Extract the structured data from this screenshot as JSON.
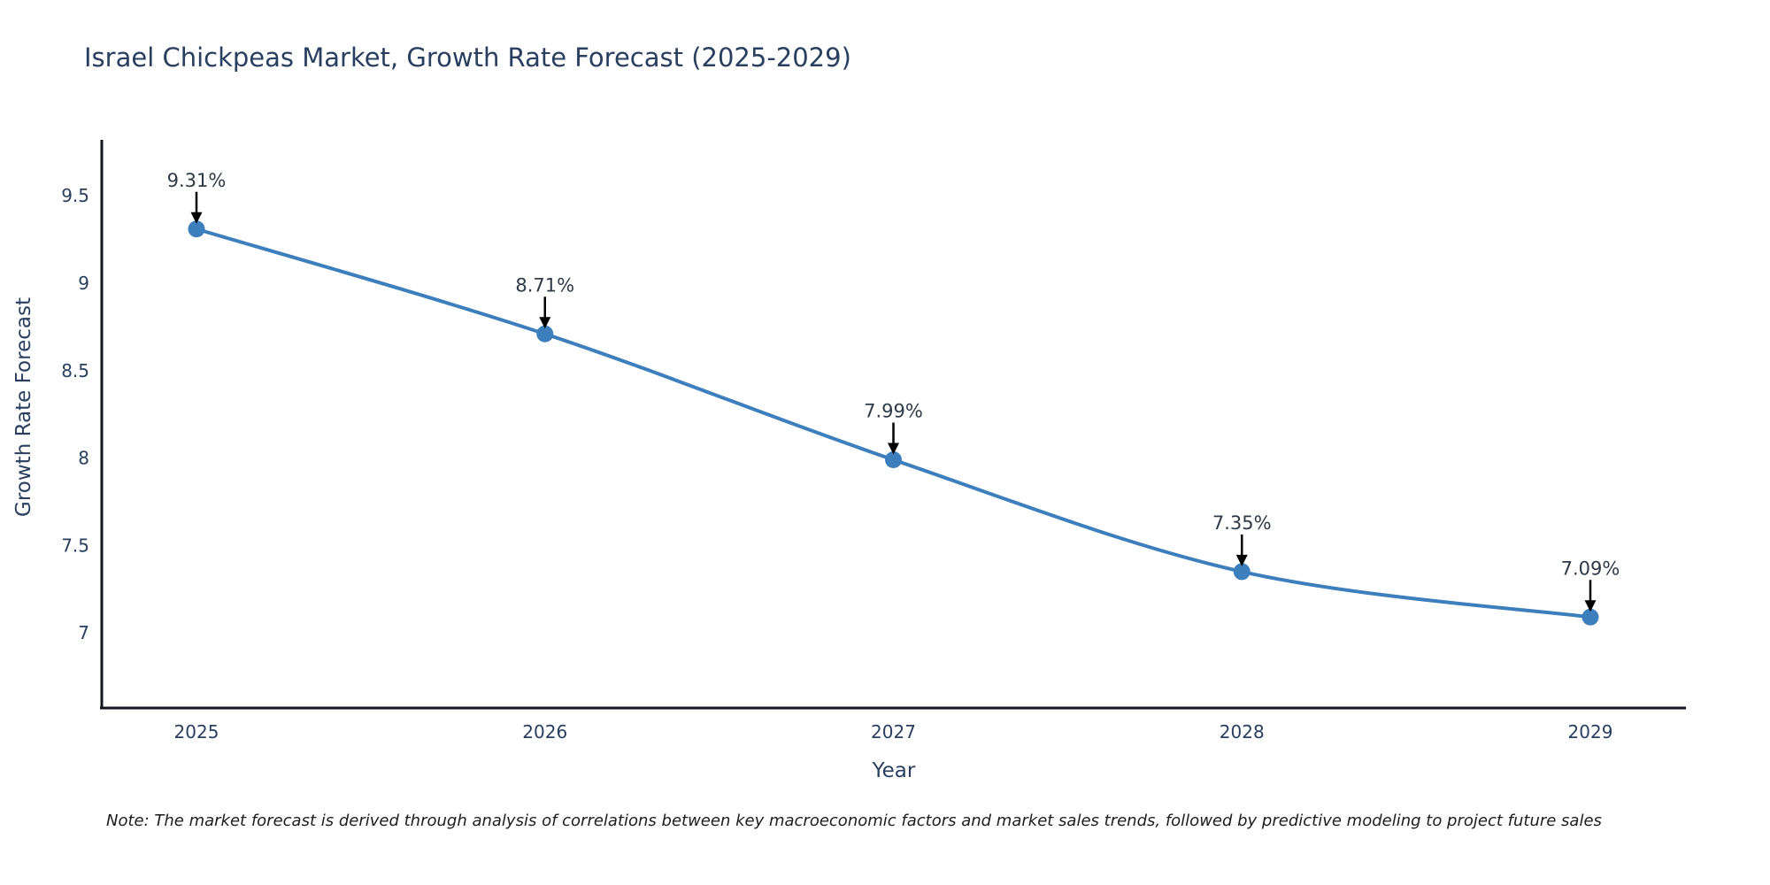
{
  "title": "Israel Chickpeas Market, Growth Rate Forecast (2025-2029)",
  "note": "Note: The market forecast is derived through analysis of correlations between key macroeconomic factors and market sales trends, followed by predictive modeling to project future sales",
  "chart_data": {
    "type": "line",
    "title": "Israel Chickpeas Market, Growth Rate Forecast (2025-2029)",
    "xlabel": "Year",
    "ylabel": "Growth Rate Forecast",
    "categories": [
      "2025",
      "2026",
      "2027",
      "2028",
      "2029"
    ],
    "values": [
      9.31,
      8.71,
      7.99,
      7.35,
      7.09
    ],
    "point_labels": [
      "9.31%",
      "8.71%",
      "7.99%",
      "7.35%",
      "7.09%"
    ],
    "yticks": [
      9.5,
      9,
      8.5,
      8,
      7.5,
      7
    ],
    "ylim": [
      6.57,
      9.81
    ],
    "grid": false,
    "legend": "none",
    "line_shape": "spline",
    "colors": {
      "line": "#3d7ebd",
      "marker": "#3d7ebd",
      "tick_text": "#2a3f5f",
      "annotation_text": "#2f3a47",
      "axis": "#13161f",
      "annotation_arrow": "#000000"
    }
  }
}
